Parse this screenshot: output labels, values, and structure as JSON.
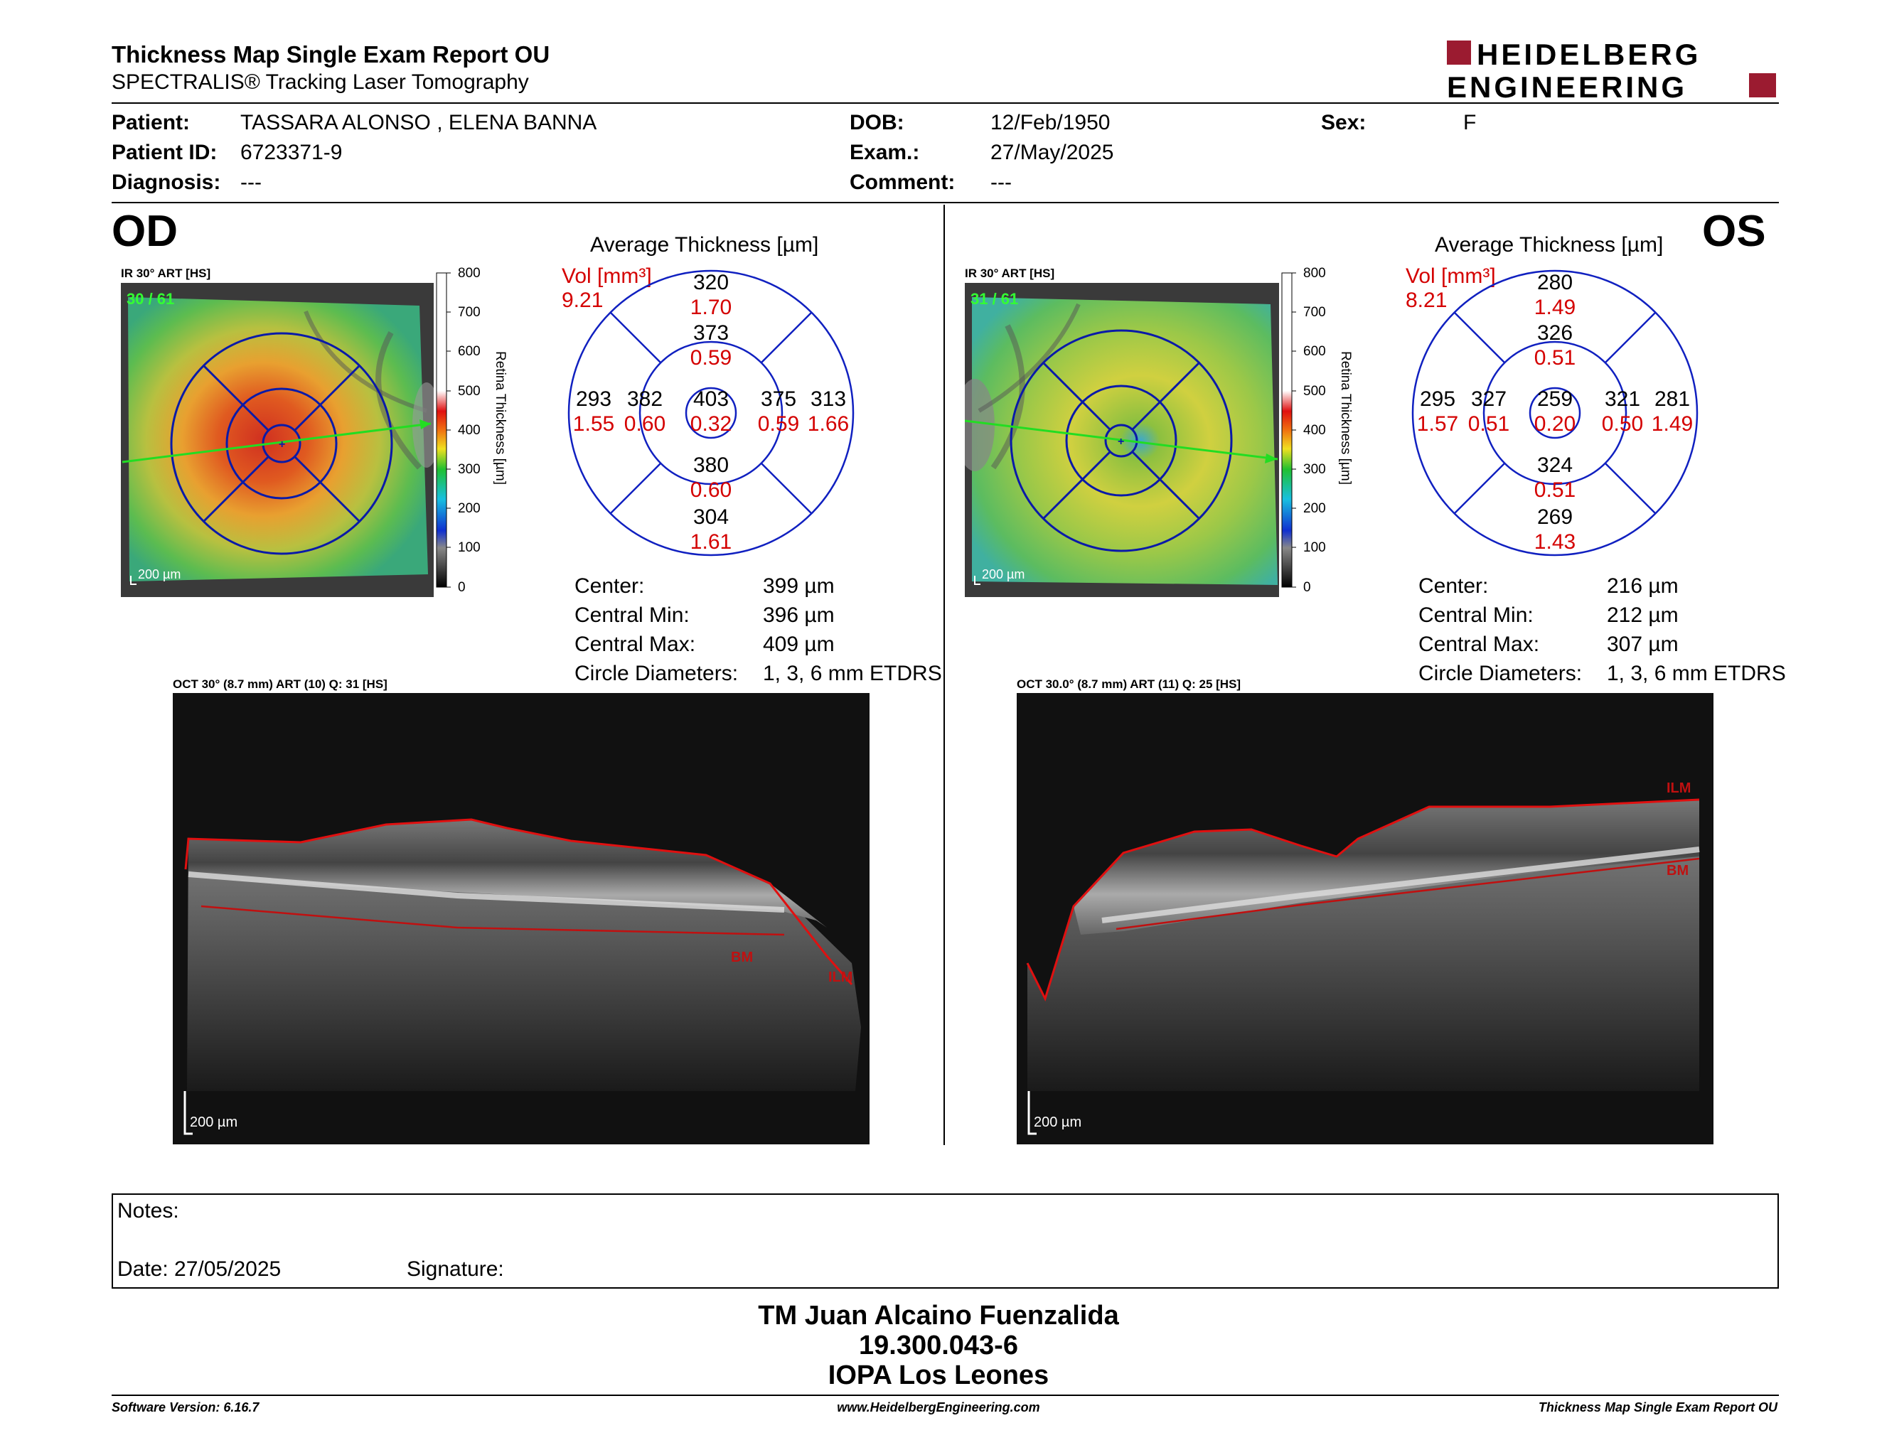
{
  "header": {
    "title": "Thickness Map Single Exam Report OU",
    "subtitle": "SPECTRALIS® Tracking Laser Tomography",
    "logo_line1": "HEIDELBERG",
    "logo_line2": "ENGINEERING",
    "brand_color": "#9b1b30"
  },
  "patient": {
    "patient_label": "Patient:",
    "patient_value": "TASSARA ALONSO , ELENA BANNA",
    "id_label": "Patient ID:",
    "id_value": "6723371-9",
    "diag_label": "Diagnosis:",
    "diag_value": "---",
    "dob_label": "DOB:",
    "dob_value": "12/Feb/1950",
    "exam_label": "Exam.:",
    "exam_value": "27/May/2025",
    "comment_label": "Comment:",
    "comment_value": "---",
    "sex_label": "Sex:",
    "sex_value": "F"
  },
  "od": {
    "eye": "OD",
    "ir_label": "IR 30° ART [HS]",
    "frames": "30 / 61",
    "scale": "200 µm",
    "scale_ticks": [
      "800",
      "700",
      "600",
      "500",
      "400",
      "300",
      "200",
      "100",
      "0"
    ],
    "scale_title": "Retina Thickness [µm]",
    "avg_title": "Average Thickness [µm]",
    "vol_label": "Vol [mm³]",
    "vol_value": "9.21",
    "sectors": {
      "outer_top": [
        "320",
        "1.70"
      ],
      "inner_top": [
        "373",
        "0.59"
      ],
      "outer_left": [
        "293",
        "1.55"
      ],
      "inner_left": [
        "382",
        "0.60"
      ],
      "center": [
        "403",
        "0.32"
      ],
      "inner_right": [
        "375",
        "0.59"
      ],
      "outer_right": [
        "313",
        "1.66"
      ],
      "inner_bottom": [
        "380",
        "0.60"
      ],
      "outer_bottom": [
        "304",
        "1.61"
      ]
    },
    "stats": [
      {
        "label": "Center:",
        "value": "399 µm"
      },
      {
        "label": "Central Min:",
        "value": "396 µm"
      },
      {
        "label": "Central Max:",
        "value": "409 µm"
      },
      {
        "label": "Circle Diameters:",
        "value": "1, 3, 6 mm ETDRS"
      }
    ],
    "oct_label": "OCT 30° (8.7 mm) ART (10) Q: 31 [HS]",
    "oct_scale": "200 µm",
    "ilm": "ILM",
    "bm": "BM"
  },
  "os": {
    "eye": "OS",
    "ir_label": "IR 30° ART [HS]",
    "frames": "31 / 61",
    "scale": "200 µm",
    "scale_ticks": [
      "800",
      "700",
      "600",
      "500",
      "400",
      "300",
      "200",
      "100",
      "0"
    ],
    "scale_title": "Retina Thickness [µm]",
    "avg_title": "Average Thickness [µm]",
    "vol_label": "Vol [mm³]",
    "vol_value": "8.21",
    "sectors": {
      "outer_top": [
        "280",
        "1.49"
      ],
      "inner_top": [
        "326",
        "0.51"
      ],
      "outer_left": [
        "295",
        "1.57"
      ],
      "inner_left": [
        "327",
        "0.51"
      ],
      "center": [
        "259",
        "0.20"
      ],
      "inner_right": [
        "321",
        "0.50"
      ],
      "outer_right": [
        "281",
        "1.49"
      ],
      "inner_bottom": [
        "324",
        "0.51"
      ],
      "outer_bottom": [
        "269",
        "1.43"
      ]
    },
    "stats": [
      {
        "label": "Center:",
        "value": "216 µm"
      },
      {
        "label": "Central Min:",
        "value": "212 µm"
      },
      {
        "label": "Central Max:",
        "value": "307 µm"
      },
      {
        "label": "Circle Diameters:",
        "value": "1, 3, 6 mm ETDRS"
      }
    ],
    "oct_label": "OCT 30.0° (8.7 mm) ART (11) Q: 25 [HS]",
    "oct_scale": "200 µm",
    "ilm": "ILM",
    "bm": "BM"
  },
  "notes": {
    "notes_label": "Notes:",
    "date_label": "Date: 27/05/2025",
    "signature_label": "Signature:"
  },
  "signer": {
    "name": "TM Juan Alcaino Fuenzalida",
    "id": "19.300.043-6",
    "org": "IOPA Los Leones"
  },
  "footer": {
    "left": "Software Version: 6.16.7",
    "center": "www.HeidelbergEngineering.com",
    "right": "Thickness Map Single Exam Report OU"
  }
}
